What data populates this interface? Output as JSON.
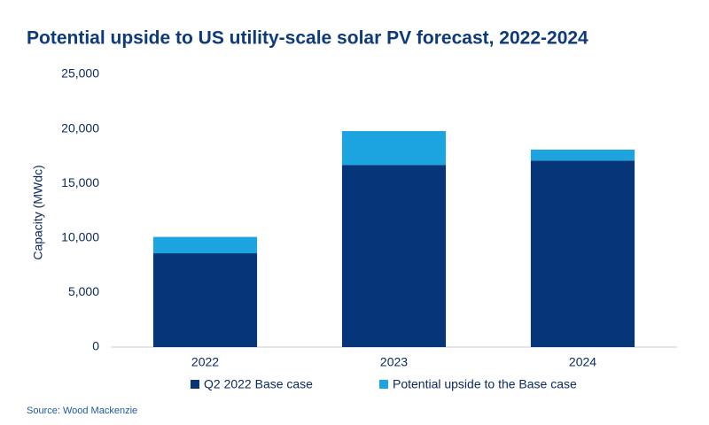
{
  "chart_data": {
    "type": "stacked_bar",
    "title": "Potential upside to US utility-scale solar PV forecast, 2022-2024",
    "y_label": "Capacity (MWdc)",
    "categories": [
      "2022",
      "2023",
      "2024"
    ],
    "series": [
      {
        "name": "Q2 2022 Base case",
        "color": "#06357a",
        "values": [
          8600,
          16700,
          17100
        ]
      },
      {
        "name": "Potential upside to the Base case",
        "color": "#1ba4e0",
        "values": [
          1500,
          3100,
          1000
        ]
      }
    ],
    "ylim": [
      0,
      25000
    ],
    "yticks": [
      0,
      {
        "value": 5000,
        "label": "5,000"
      },
      {
        "value": 10000,
        "label": "10,000"
      },
      {
        "value": 15000,
        "label": "15,000"
      },
      {
        "value": 20000,
        "label": "20,000"
      },
      {
        "value": 25000,
        "label": "25,000"
      }
    ],
    "grid": false,
    "source": "Source: Wood Mackenzie"
  }
}
